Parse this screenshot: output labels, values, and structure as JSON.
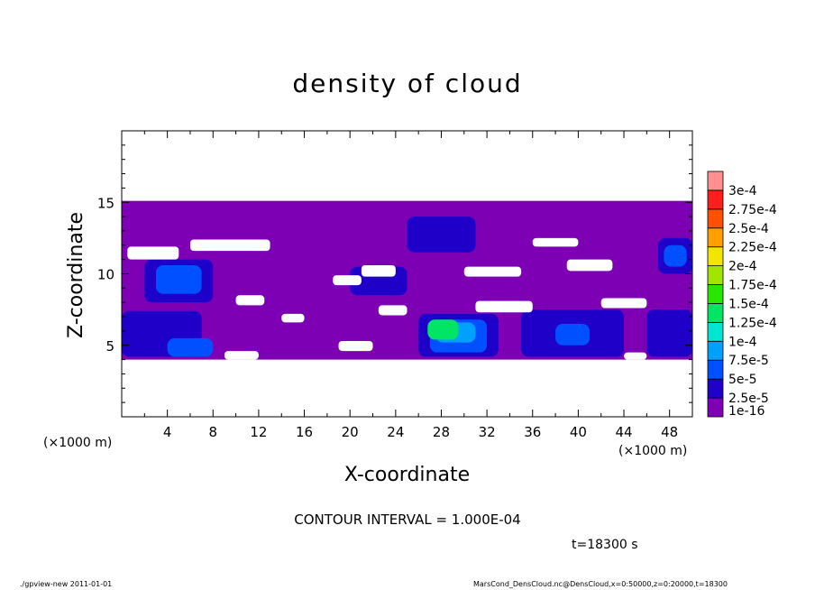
{
  "chart_data": {
    "type": "heatmap",
    "title": "density of cloud",
    "xlabel": "X-coordinate",
    "ylabel": "Z-coordinate",
    "x_unit_label": "(×1000 m)",
    "y_unit_label": "(×1000 m)",
    "xlim": [
      0,
      50
    ],
    "ylim": [
      0,
      20
    ],
    "x_ticks": [
      4,
      8,
      12,
      16,
      20,
      24,
      28,
      32,
      36,
      40,
      44,
      48
    ],
    "y_ticks": [
      5,
      10,
      15
    ],
    "colorbar": {
      "levels": [
        "1e-16",
        "2.5e-5",
        "5e-5",
        "7.5e-5",
        "1e-4",
        "1.25e-4",
        "1.5e-4",
        "1.75e-4",
        "2e-4",
        "2.25e-4",
        "2.5e-4",
        "2.75e-4",
        "3e-4"
      ],
      "colors": [
        "#7d00b4",
        "#1e00c8",
        "#0050ff",
        "#00a0ff",
        "#00e6d2",
        "#00e664",
        "#28e600",
        "#a0e600",
        "#f0e600",
        "#ffa000",
        "#ff5000",
        "#ff1e1e",
        "#ff9090"
      ]
    },
    "regions": [
      {
        "level": 0,
        "x0": 0,
        "x1": 50,
        "z0": 4,
        "z1": 15.1
      },
      {
        "level": 1,
        "x0": 2,
        "x1": 8,
        "z0": 8,
        "z1": 11
      },
      {
        "level": 2,
        "x0": 3,
        "x1": 7,
        "z0": 8.6,
        "z1": 10.6
      },
      {
        "level": 1,
        "x0": 0,
        "x1": 7,
        "z0": 4.2,
        "z1": 7.4
      },
      {
        "level": 2,
        "x0": 4,
        "x1": 8,
        "z0": 4.2,
        "z1": 5.5
      },
      {
        "level": 1,
        "x0": 20,
        "x1": 25,
        "z0": 8.5,
        "z1": 10.5
      },
      {
        "level": 1,
        "x0": 25,
        "x1": 31,
        "z0": 11.5,
        "z1": 14
      },
      {
        "level": 1,
        "x0": 26,
        "x1": 33,
        "z0": 4.2,
        "z1": 7.2
      },
      {
        "level": 2,
        "x0": 27,
        "x1": 32,
        "z0": 4.5,
        "z1": 6.8
      },
      {
        "level": 3,
        "x0": 27.5,
        "x1": 31,
        "z0": 5.2,
        "z1": 6.6
      },
      {
        "level": 5,
        "x0": 26.8,
        "x1": 29.5,
        "z0": 5.4,
        "z1": 6.8
      },
      {
        "level": 1,
        "x0": 35,
        "x1": 44,
        "z0": 4.2,
        "z1": 7.5
      },
      {
        "level": 2,
        "x0": 38,
        "x1": 41,
        "z0": 5,
        "z1": 6.5
      },
      {
        "level": 1,
        "x0": 46,
        "x1": 50,
        "z0": 4.2,
        "z1": 7.5
      },
      {
        "level": 1,
        "x0": 47,
        "x1": 50,
        "z0": 10,
        "z1": 12.5
      },
      {
        "level": 2,
        "x0": 47.5,
        "x1": 49.5,
        "z0": 10.5,
        "z1": 12
      }
    ],
    "gaps": [
      {
        "x0": 0.5,
        "x1": 5,
        "z0": 11,
        "z1": 11.9
      },
      {
        "x0": 6,
        "x1": 13,
        "z0": 11.6,
        "z1": 12.4
      },
      {
        "x0": 10,
        "x1": 12.5,
        "z0": 7.8,
        "z1": 8.5
      },
      {
        "x0": 14,
        "x1": 16,
        "z0": 6.6,
        "z1": 7.2
      },
      {
        "x0": 21,
        "x1": 24,
        "z0": 9.8,
        "z1": 10.6
      },
      {
        "x0": 18.5,
        "x1": 21,
        "z0": 9.2,
        "z1": 9.9
      },
      {
        "x0": 30,
        "x1": 35,
        "z0": 9.8,
        "z1": 10.5
      },
      {
        "x0": 31,
        "x1": 36,
        "z0": 7.3,
        "z1": 8.1
      },
      {
        "x0": 22.5,
        "x1": 25,
        "z0": 7.1,
        "z1": 7.8
      },
      {
        "x0": 39,
        "x1": 43,
        "z0": 10.2,
        "z1": 11
      },
      {
        "x0": 42,
        "x1": 46,
        "z0": 7.6,
        "z1": 8.3
      },
      {
        "x0": 36,
        "x1": 40,
        "z0": 11.9,
        "z1": 12.5
      },
      {
        "x0": 19,
        "x1": 22,
        "z0": 4.6,
        "z1": 5.3
      },
      {
        "x0": 9,
        "x1": 12,
        "z0": 4,
        "z1": 4.6
      },
      {
        "x0": 44,
        "x1": 46,
        "z0": 4,
        "z1": 4.5
      }
    ]
  },
  "contour_interval": "CONTOUR INTERVAL = 1.000E-04",
  "time_label": "t=18300 s",
  "footer_left": "./gpview-new   2011-01-01",
  "footer_right": "MarsCond_DensCloud.nc@DensCloud,x=0:50000,z=0:20000,t=18300"
}
